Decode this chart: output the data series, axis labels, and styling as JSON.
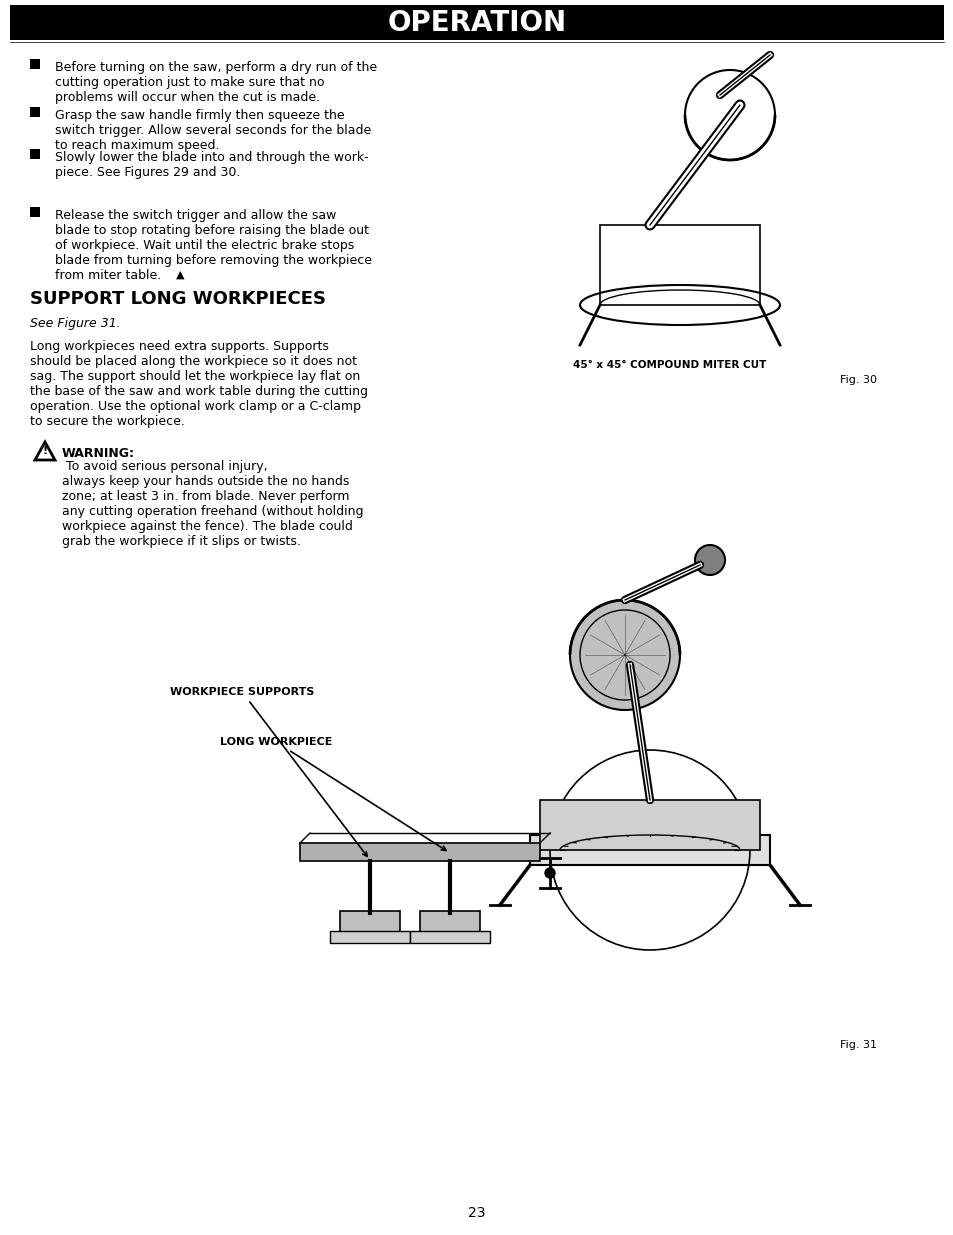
{
  "page_bg": "#ffffff",
  "header_bg": "#000000",
  "header_text": "OPERATION",
  "header_text_color": "#ffffff",
  "header_fontsize": 20,
  "page_number": "23",
  "bullet_items": [
    "Before turning on the saw, perform a dry run of the\ncutting operation just to make sure that no\nproblems will occur when the cut is made.",
    "Grasp the saw handle firmly then squeeze the\nswitch trigger. Allow several seconds for the blade\nto reach maximum speed.",
    "Slowly lower the blade into and through the work-\npiece. See Figures 29 and 30.",
    "Release the switch trigger and allow the saw\nblade to stop rotating before raising the blade out\nof workpiece. Wait until the electric brake stops\nblade from turning before removing the workpiece\nfrom miter table."
  ],
  "section_title": "SUPPORT LONG WORKPIECES",
  "see_figure_31": "See Figure 31.",
  "body_text": "Long workpieces need extra supports. Supports\nshould be placed along the workpiece so it does not\nsag. The support should let the workpiece lay flat on\nthe base of the saw and work table during the cutting\noperation. Use the optional work clamp or a C-clamp\nto secure the workpiece.",
  "warning_title": "WARNING:",
  "warning_text": " To avoid serious personal injury,\nalways keep your hands outside the no hands\nzone; at least 3 in. from blade. Never perform\nany cutting operation freehand (without holding\nworkpiece against the fence). The blade could\ngrab the workpiece if it slips or twists.",
  "fig30_caption": "45° x 45° COMPOUND MITER CUT",
  "fig30_label": "Fig. 30",
  "fig31_label": "Fig. 31",
  "long_workpiece_label": "LONG WORKPIECE",
  "workpiece_supports_label": "WORKPIECE SUPPORTS",
  "text_color": "#000000",
  "body_fontsize": 9,
  "bullet_fontsize": 9,
  "section_fontsize": 13,
  "caption_fontsize": 8
}
